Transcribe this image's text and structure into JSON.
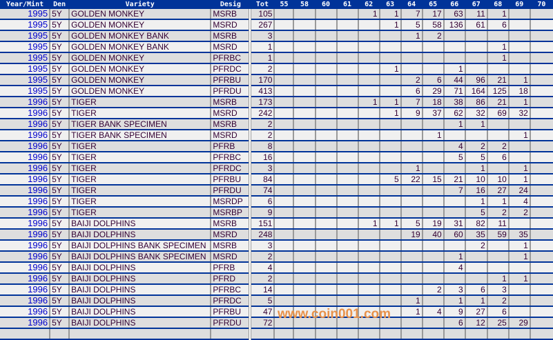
{
  "colors": {
    "header_bg": "#003399",
    "row_odd": "#dedede",
    "row_even": "#f0f0f0",
    "year_link": "#0000cc",
    "watermark": "#f0a050"
  },
  "headers": [
    "Year/Mint",
    "Den",
    "Variety",
    "Desig",
    "Tot",
    "55",
    "58",
    "60",
    "61",
    "62",
    "63",
    "64",
    "65",
    "66",
    "67",
    "68",
    "69",
    "70"
  ],
  "rows": [
    {
      "year": "1995",
      "den": "5Y",
      "variety": "GOLDEN MONKEY",
      "desig": "MSRB",
      "tot": "105",
      "grades": [
        "",
        "",
        "",
        "",
        "1",
        "1",
        "7",
        "17",
        "63",
        "11",
        "1",
        "",
        ""
      ]
    },
    {
      "year": "1995",
      "den": "5Y",
      "variety": "GOLDEN MONKEY",
      "desig": "MSRD",
      "tot": "267",
      "grades": [
        "",
        "",
        "",
        "",
        "",
        "1",
        "5",
        "58",
        "136",
        "61",
        "6",
        "",
        ""
      ]
    },
    {
      "year": "1995",
      "den": "5Y",
      "variety": "GOLDEN MONKEY BANK",
      "desig": "MSRB",
      "tot": "3",
      "grades": [
        "",
        "",
        "",
        "",
        "",
        "",
        "1",
        "2",
        "",
        "",
        "",
        "",
        ""
      ]
    },
    {
      "year": "1995",
      "den": "5Y",
      "variety": "GOLDEN MONKEY BANK",
      "desig": "MSRD",
      "tot": "1",
      "grades": [
        "",
        "",
        "",
        "",
        "",
        "",
        "",
        "",
        "",
        "",
        "1",
        "",
        ""
      ]
    },
    {
      "year": "1995",
      "den": "5Y",
      "variety": "GOLDEN MONKEY",
      "desig": "PFRBC",
      "tot": "1",
      "grades": [
        "",
        "",
        "",
        "",
        "",
        "",
        "",
        "",
        "",
        "",
        "1",
        "",
        ""
      ]
    },
    {
      "year": "1995",
      "den": "5Y",
      "variety": "GOLDEN MONKEY",
      "desig": "PFRDC",
      "tot": "2",
      "grades": [
        "",
        "",
        "",
        "",
        "",
        "1",
        "",
        "",
        "1",
        "",
        "",
        "",
        ""
      ]
    },
    {
      "year": "1995",
      "den": "5Y",
      "variety": "GOLDEN MONKEY",
      "desig": "PFRBU",
      "tot": "170",
      "grades": [
        "",
        "",
        "",
        "",
        "",
        "",
        "2",
        "6",
        "44",
        "96",
        "21",
        "1",
        ""
      ]
    },
    {
      "year": "1995",
      "den": "5Y",
      "variety": "GOLDEN MONKEY",
      "desig": "PFRDU",
      "tot": "413",
      "grades": [
        "",
        "",
        "",
        "",
        "",
        "",
        "6",
        "29",
        "71",
        "164",
        "125",
        "18",
        ""
      ]
    },
    {
      "year": "1996",
      "den": "5Y",
      "variety": "TIGER",
      "desig": "MSRB",
      "tot": "173",
      "grades": [
        "",
        "",
        "",
        "",
        "1",
        "1",
        "7",
        "18",
        "38",
        "86",
        "21",
        "1",
        ""
      ]
    },
    {
      "year": "1996",
      "den": "5Y",
      "variety": "TIGER",
      "desig": "MSRD",
      "tot": "242",
      "grades": [
        "",
        "",
        "",
        "",
        "",
        "1",
        "9",
        "37",
        "62",
        "32",
        "69",
        "32",
        ""
      ]
    },
    {
      "year": "1996",
      "den": "5Y",
      "variety": "TIGER BANK SPECIMEN",
      "desig": "MSRB",
      "tot": "2",
      "grades": [
        "",
        "",
        "",
        "",
        "",
        "",
        "",
        "",
        "1",
        "1",
        "",
        "",
        ""
      ]
    },
    {
      "year": "1996",
      "den": "5Y",
      "variety": "TIGER BANK SPECIMEN",
      "desig": "MSRD",
      "tot": "2",
      "grades": [
        "",
        "",
        "",
        "",
        "",
        "",
        "",
        "1",
        "",
        "",
        "",
        "1",
        ""
      ]
    },
    {
      "year": "1996",
      "den": "5Y",
      "variety": "TIGER",
      "desig": "PFRB",
      "tot": "8",
      "grades": [
        "",
        "",
        "",
        "",
        "",
        "",
        "",
        "",
        "4",
        "2",
        "2",
        "",
        ""
      ]
    },
    {
      "year": "1996",
      "den": "5Y",
      "variety": "TIGER",
      "desig": "PFRBC",
      "tot": "16",
      "grades": [
        "",
        "",
        "",
        "",
        "",
        "",
        "",
        "",
        "5",
        "5",
        "6",
        "",
        ""
      ]
    },
    {
      "year": "1996",
      "den": "5Y",
      "variety": "TIGER",
      "desig": "PFRDC",
      "tot": "3",
      "grades": [
        "",
        "",
        "",
        "",
        "",
        "",
        "1",
        "",
        "",
        "1",
        "",
        "1",
        ""
      ]
    },
    {
      "year": "1996",
      "den": "5Y",
      "variety": "TIGER",
      "desig": "PFRBU",
      "tot": "84",
      "grades": [
        "",
        "",
        "",
        "",
        "",
        "5",
        "22",
        "15",
        "21",
        "10",
        "10",
        "1",
        ""
      ]
    },
    {
      "year": "1996",
      "den": "5Y",
      "variety": "TIGER",
      "desig": "PFRDU",
      "tot": "74",
      "grades": [
        "",
        "",
        "",
        "",
        "",
        "",
        "",
        "",
        "7",
        "16",
        "27",
        "24",
        ""
      ]
    },
    {
      "year": "1996",
      "den": "5Y",
      "variety": "TIGER",
      "desig": "MSRDP",
      "tot": "6",
      "grades": [
        "",
        "",
        "",
        "",
        "",
        "",
        "",
        "",
        "",
        "1",
        "1",
        "4",
        ""
      ]
    },
    {
      "year": "1996",
      "den": "5Y",
      "variety": "TIGER",
      "desig": "MSRBP",
      "tot": "9",
      "grades": [
        "",
        "",
        "",
        "",
        "",
        "",
        "",
        "",
        "",
        "5",
        "2",
        "2",
        ""
      ]
    },
    {
      "year": "1996",
      "den": "5Y",
      "variety": "BAIJI DOLPHINS",
      "desig": "MSRB",
      "tot": "151",
      "grades": [
        "",
        "",
        "",
        "",
        "1",
        "1",
        "5",
        "19",
        "31",
        "82",
        "11",
        "",
        ""
      ]
    },
    {
      "year": "1996",
      "den": "5Y",
      "variety": "BAIJI DOLPHINS",
      "desig": "MSRD",
      "tot": "248",
      "grades": [
        "",
        "",
        "",
        "",
        "",
        "",
        "19",
        "40",
        "60",
        "35",
        "59",
        "35",
        ""
      ]
    },
    {
      "year": "1996",
      "den": "5Y",
      "variety": "BAIJI DOLPHINS BANK SPECIMEN",
      "desig": "MSRB",
      "tot": "3",
      "grades": [
        "",
        "",
        "",
        "",
        "",
        "",
        "",
        "",
        "",
        "2",
        "",
        "1",
        ""
      ]
    },
    {
      "year": "1996",
      "den": "5Y",
      "variety": "BAIJI DOLPHINS BANK SPECIMEN",
      "desig": "MSRD",
      "tot": "2",
      "grades": [
        "",
        "",
        "",
        "",
        "",
        "",
        "",
        "",
        "1",
        "",
        "",
        "1",
        ""
      ]
    },
    {
      "year": "1996",
      "den": "5Y",
      "variety": "BAIJI DOLPHINS",
      "desig": "PFRB",
      "tot": "4",
      "grades": [
        "",
        "",
        "",
        "",
        "",
        "",
        "",
        "",
        "4",
        "",
        "",
        "",
        ""
      ]
    },
    {
      "year": "1996",
      "den": "5Y",
      "variety": "BAIJI DOLPHINS",
      "desig": "PFRD",
      "tot": "2",
      "grades": [
        "",
        "",
        "",
        "",
        "",
        "",
        "",
        "",
        "",
        "",
        "1",
        "1",
        ""
      ]
    },
    {
      "year": "1996",
      "den": "5Y",
      "variety": "BAIJI DOLPHINS",
      "desig": "PFRBC",
      "tot": "14",
      "grades": [
        "",
        "",
        "",
        "",
        "",
        "",
        "",
        "2",
        "3",
        "6",
        "3",
        "",
        ""
      ]
    },
    {
      "year": "1996",
      "den": "5Y",
      "variety": "BAIJI DOLPHINS",
      "desig": "PFRDC",
      "tot": "5",
      "grades": [
        "",
        "",
        "",
        "",
        "",
        "",
        "1",
        "",
        "1",
        "1",
        "2",
        "",
        ""
      ]
    },
    {
      "year": "1996",
      "den": "5Y",
      "variety": "BAIJI DOLPHINS",
      "desig": "PFRBU",
      "tot": "47",
      "grades": [
        "",
        "",
        "",
        "",
        "",
        "",
        "1",
        "4",
        "9",
        "27",
        "6",
        "",
        ""
      ]
    },
    {
      "year": "1996",
      "den": "5Y",
      "variety": "BAIJI DOLPHINS",
      "desig": "PFRDU",
      "tot": "72",
      "grades": [
        "",
        "",
        "",
        "",
        "",
        "",
        "",
        "",
        "6",
        "12",
        "25",
        "29",
        ""
      ]
    }
  ],
  "watermark": "www.coin001.com"
}
